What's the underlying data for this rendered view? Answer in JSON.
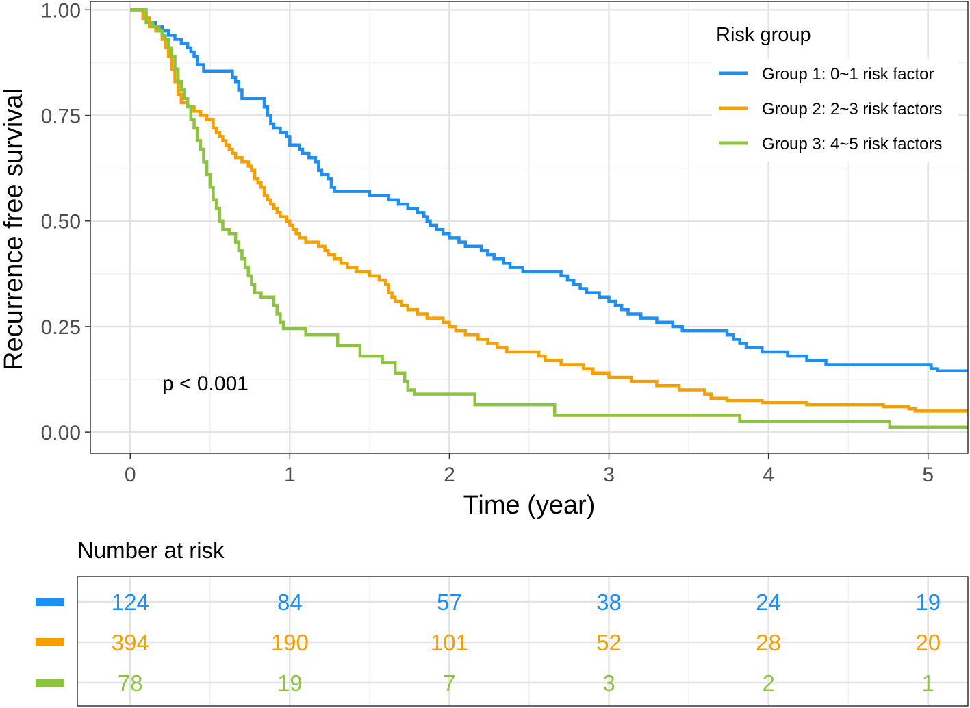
{
  "chart_data": {
    "type": "line",
    "subtype": "kaplan-meier step",
    "xlabel": "Time (year)",
    "ylabel": "Recurrence free survival",
    "xlim": [
      -0.25,
      5.25
    ],
    "ylim": [
      -0.05,
      1.02
    ],
    "x_ticks": [
      "0",
      "1",
      "2",
      "3",
      "4",
      "5"
    ],
    "y_ticks": [
      "0.00",
      "0.25",
      "0.50",
      "0.75",
      "1.00"
    ],
    "annotation": "p < 0.001",
    "legend": {
      "title": "Risk group",
      "position": "top-right"
    },
    "series": [
      {
        "name": "Group 1: 0~1 risk factor",
        "color": "#1f8ef1",
        "points": [
          [
            0,
            1.0
          ],
          [
            0.04,
            1.0
          ],
          [
            0.08,
            0.98
          ],
          [
            0.12,
            0.97
          ],
          [
            0.16,
            0.96
          ],
          [
            0.2,
            0.95
          ],
          [
            0.24,
            0.94
          ],
          [
            0.28,
            0.93
          ],
          [
            0.32,
            0.92
          ],
          [
            0.36,
            0.91
          ],
          [
            0.38,
            0.9
          ],
          [
            0.4,
            0.89
          ],
          [
            0.42,
            0.87
          ],
          [
            0.46,
            0.855
          ],
          [
            0.6,
            0.855
          ],
          [
            0.64,
            0.84
          ],
          [
            0.66,
            0.83
          ],
          [
            0.68,
            0.81
          ],
          [
            0.7,
            0.79
          ],
          [
            0.82,
            0.79
          ],
          [
            0.84,
            0.77
          ],
          [
            0.86,
            0.75
          ],
          [
            0.88,
            0.73
          ],
          [
            0.9,
            0.72
          ],
          [
            0.94,
            0.71
          ],
          [
            0.98,
            0.7
          ],
          [
            1.0,
            0.68
          ],
          [
            1.06,
            0.67
          ],
          [
            1.08,
            0.66
          ],
          [
            1.12,
            0.65
          ],
          [
            1.16,
            0.64
          ],
          [
            1.18,
            0.62
          ],
          [
            1.2,
            0.61
          ],
          [
            1.24,
            0.6
          ],
          [
            1.26,
            0.58
          ],
          [
            1.28,
            0.57
          ],
          [
            1.48,
            0.57
          ],
          [
            1.5,
            0.56
          ],
          [
            1.6,
            0.56
          ],
          [
            1.62,
            0.55
          ],
          [
            1.68,
            0.54
          ],
          [
            1.74,
            0.53
          ],
          [
            1.8,
            0.52
          ],
          [
            1.84,
            0.51
          ],
          [
            1.86,
            0.5
          ],
          [
            1.88,
            0.49
          ],
          [
            1.92,
            0.48
          ],
          [
            1.96,
            0.47
          ],
          [
            2.0,
            0.46
          ],
          [
            2.06,
            0.45
          ],
          [
            2.1,
            0.44
          ],
          [
            2.2,
            0.43
          ],
          [
            2.24,
            0.42
          ],
          [
            2.28,
            0.41
          ],
          [
            2.34,
            0.4
          ],
          [
            2.38,
            0.39
          ],
          [
            2.46,
            0.38
          ],
          [
            2.64,
            0.38
          ],
          [
            2.7,
            0.37
          ],
          [
            2.74,
            0.36
          ],
          [
            2.78,
            0.35
          ],
          [
            2.82,
            0.34
          ],
          [
            2.86,
            0.33
          ],
          [
            2.94,
            0.32
          ],
          [
            3.0,
            0.31
          ],
          [
            3.04,
            0.3
          ],
          [
            3.08,
            0.29
          ],
          [
            3.12,
            0.28
          ],
          [
            3.2,
            0.27
          ],
          [
            3.3,
            0.26
          ],
          [
            3.4,
            0.25
          ],
          [
            3.46,
            0.24
          ],
          [
            3.7,
            0.24
          ],
          [
            3.74,
            0.23
          ],
          [
            3.78,
            0.22
          ],
          [
            3.82,
            0.21
          ],
          [
            3.86,
            0.2
          ],
          [
            3.96,
            0.19
          ],
          [
            4.08,
            0.19
          ],
          [
            4.12,
            0.18
          ],
          [
            4.24,
            0.17
          ],
          [
            4.32,
            0.17
          ],
          [
            4.36,
            0.16
          ],
          [
            4.4,
            0.16
          ],
          [
            5.0,
            0.16
          ],
          [
            5.02,
            0.15
          ],
          [
            5.06,
            0.145
          ],
          [
            5.25,
            0.145
          ]
        ]
      },
      {
        "name": "Group 2: 2~3 risk factors",
        "color": "#f59f00",
        "points": [
          [
            0,
            1.0
          ],
          [
            0.04,
            1.0
          ],
          [
            0.08,
            0.98
          ],
          [
            0.12,
            0.96
          ],
          [
            0.16,
            0.95
          ],
          [
            0.2,
            0.93
          ],
          [
            0.22,
            0.91
          ],
          [
            0.24,
            0.89
          ],
          [
            0.26,
            0.86
          ],
          [
            0.28,
            0.83
          ],
          [
            0.3,
            0.8
          ],
          [
            0.32,
            0.78
          ],
          [
            0.36,
            0.77
          ],
          [
            0.4,
            0.76
          ],
          [
            0.44,
            0.75
          ],
          [
            0.48,
            0.74
          ],
          [
            0.52,
            0.72
          ],
          [
            0.54,
            0.71
          ],
          [
            0.56,
            0.7
          ],
          [
            0.58,
            0.69
          ],
          [
            0.6,
            0.68
          ],
          [
            0.62,
            0.67
          ],
          [
            0.64,
            0.66
          ],
          [
            0.66,
            0.65
          ],
          [
            0.7,
            0.64
          ],
          [
            0.74,
            0.63
          ],
          [
            0.76,
            0.62
          ],
          [
            0.78,
            0.6
          ],
          [
            0.8,
            0.59
          ],
          [
            0.82,
            0.58
          ],
          [
            0.84,
            0.56
          ],
          [
            0.86,
            0.55
          ],
          [
            0.88,
            0.54
          ],
          [
            0.9,
            0.53
          ],
          [
            0.92,
            0.52
          ],
          [
            0.94,
            0.51
          ],
          [
            0.98,
            0.5
          ],
          [
            1.0,
            0.49
          ],
          [
            1.02,
            0.48
          ],
          [
            1.04,
            0.47
          ],
          [
            1.06,
            0.46
          ],
          [
            1.1,
            0.45
          ],
          [
            1.18,
            0.44
          ],
          [
            1.22,
            0.43
          ],
          [
            1.24,
            0.42
          ],
          [
            1.28,
            0.41
          ],
          [
            1.32,
            0.4
          ],
          [
            1.36,
            0.39
          ],
          [
            1.42,
            0.38
          ],
          [
            1.5,
            0.37
          ],
          [
            1.56,
            0.36
          ],
          [
            1.6,
            0.35
          ],
          [
            1.62,
            0.33
          ],
          [
            1.64,
            0.32
          ],
          [
            1.66,
            0.31
          ],
          [
            1.7,
            0.3
          ],
          [
            1.74,
            0.29
          ],
          [
            1.8,
            0.28
          ],
          [
            1.86,
            0.27
          ],
          [
            1.96,
            0.26
          ],
          [
            2.0,
            0.25
          ],
          [
            2.04,
            0.24
          ],
          [
            2.1,
            0.23
          ],
          [
            2.18,
            0.22
          ],
          [
            2.24,
            0.21
          ],
          [
            2.3,
            0.2
          ],
          [
            2.36,
            0.19
          ],
          [
            2.5,
            0.19
          ],
          [
            2.56,
            0.18
          ],
          [
            2.6,
            0.17
          ],
          [
            2.7,
            0.16
          ],
          [
            2.8,
            0.16
          ],
          [
            2.84,
            0.15
          ],
          [
            2.9,
            0.14
          ],
          [
            2.96,
            0.14
          ],
          [
            3.0,
            0.13
          ],
          [
            3.1,
            0.13
          ],
          [
            3.14,
            0.12
          ],
          [
            3.26,
            0.12
          ],
          [
            3.3,
            0.11
          ],
          [
            3.4,
            0.11
          ],
          [
            3.44,
            0.1
          ],
          [
            3.56,
            0.1
          ],
          [
            3.6,
            0.09
          ],
          [
            3.64,
            0.08
          ],
          [
            3.7,
            0.08
          ],
          [
            3.74,
            0.075
          ],
          [
            3.92,
            0.075
          ],
          [
            3.96,
            0.07
          ],
          [
            4.2,
            0.07
          ],
          [
            4.24,
            0.065
          ],
          [
            4.68,
            0.065
          ],
          [
            4.72,
            0.06
          ],
          [
            4.84,
            0.06
          ],
          [
            4.88,
            0.055
          ],
          [
            4.92,
            0.05
          ],
          [
            5.25,
            0.05
          ]
        ]
      },
      {
        "name": "Group 3: 4~5 risk factors",
        "color": "#8cc43f",
        "points": [
          [
            0,
            1.0
          ],
          [
            0.06,
            1.0
          ],
          [
            0.1,
            0.97
          ],
          [
            0.14,
            0.96
          ],
          [
            0.18,
            0.95
          ],
          [
            0.2,
            0.94
          ],
          [
            0.22,
            0.93
          ],
          [
            0.24,
            0.91
          ],
          [
            0.26,
            0.89
          ],
          [
            0.28,
            0.86
          ],
          [
            0.3,
            0.83
          ],
          [
            0.32,
            0.81
          ],
          [
            0.34,
            0.79
          ],
          [
            0.36,
            0.77
          ],
          [
            0.38,
            0.74
          ],
          [
            0.4,
            0.72
          ],
          [
            0.42,
            0.69
          ],
          [
            0.44,
            0.67
          ],
          [
            0.46,
            0.64
          ],
          [
            0.48,
            0.61
          ],
          [
            0.5,
            0.58
          ],
          [
            0.52,
            0.55
          ],
          [
            0.54,
            0.53
          ],
          [
            0.56,
            0.5
          ],
          [
            0.58,
            0.48
          ],
          [
            0.62,
            0.47
          ],
          [
            0.66,
            0.45
          ],
          [
            0.68,
            0.43
          ],
          [
            0.7,
            0.41
          ],
          [
            0.72,
            0.39
          ],
          [
            0.74,
            0.37
          ],
          [
            0.76,
            0.35
          ],
          [
            0.78,
            0.33
          ],
          [
            0.82,
            0.32
          ],
          [
            0.88,
            0.32
          ],
          [
            0.9,
            0.3
          ],
          [
            0.92,
            0.28
          ],
          [
            0.94,
            0.26
          ],
          [
            0.96,
            0.245
          ],
          [
            1.08,
            0.245
          ],
          [
            1.1,
            0.23
          ],
          [
            1.28,
            0.23
          ],
          [
            1.3,
            0.205
          ],
          [
            1.42,
            0.205
          ],
          [
            1.44,
            0.18
          ],
          [
            1.56,
            0.18
          ],
          [
            1.58,
            0.165
          ],
          [
            1.64,
            0.165
          ],
          [
            1.66,
            0.14
          ],
          [
            1.7,
            0.14
          ],
          [
            1.72,
            0.12
          ],
          [
            1.74,
            0.1
          ],
          [
            1.78,
            0.09
          ],
          [
            2.12,
            0.09
          ],
          [
            2.16,
            0.065
          ],
          [
            2.64,
            0.065
          ],
          [
            2.66,
            0.04
          ],
          [
            3.8,
            0.04
          ],
          [
            3.82,
            0.025
          ],
          [
            4.74,
            0.025
          ],
          [
            4.76,
            0.012
          ],
          [
            5.25,
            0.012
          ]
        ]
      }
    ],
    "risk_table": {
      "title": "Number at risk",
      "times": [
        0,
        1,
        2,
        3,
        4,
        5
      ],
      "rows": [
        {
          "color": "#1f8ef1",
          "values": [
            "124",
            "84",
            "57",
            "38",
            "24",
            "19"
          ]
        },
        {
          "color": "#f59f00",
          "values": [
            "394",
            "190",
            "101",
            "52",
            "28",
            "20"
          ]
        },
        {
          "color": "#8cc43f",
          "values": [
            "78",
            "19",
            "7",
            "3",
            "2",
            "1"
          ]
        }
      ]
    }
  }
}
